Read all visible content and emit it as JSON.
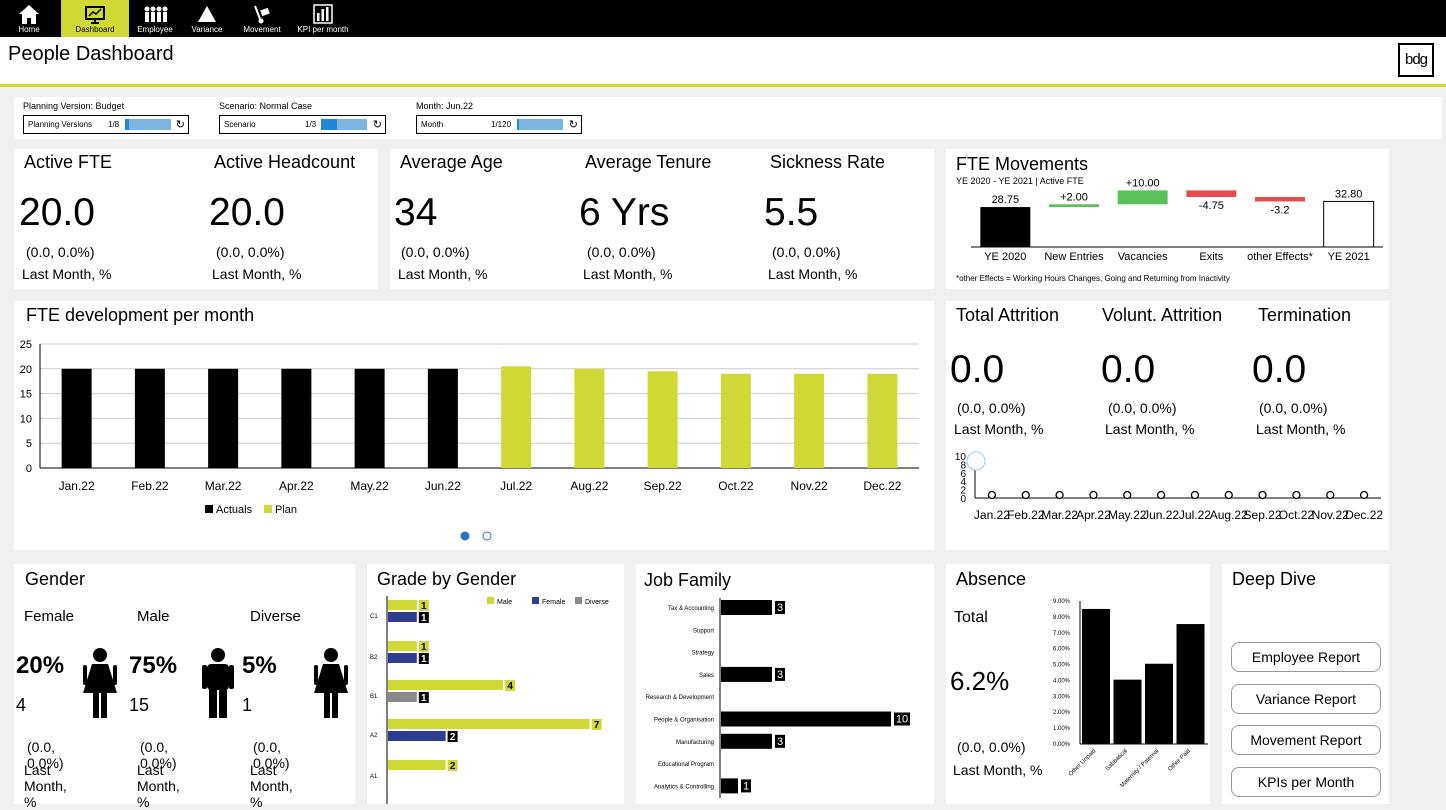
{
  "nav": [
    {
      "label": "Home",
      "icon": "home-icon"
    },
    {
      "label": "Dashboard",
      "icon": "dashboard-icon"
    },
    {
      "label": "Employee",
      "icon": "people-icon"
    },
    {
      "label": "Variance",
      "icon": "triangle-icon"
    },
    {
      "label": "Movement",
      "icon": "dolly-icon"
    },
    {
      "label": "KPI per month",
      "icon": "bar-chart-icon"
    }
  ],
  "page_title": "People Dashboard",
  "logo_text": "bdg",
  "filters": [
    {
      "label": "Planning Version: Budget",
      "box": "Planning Versions",
      "count": "1/8"
    },
    {
      "label": "Scenario: Normal Case",
      "box": "Scenario",
      "count": "1/3"
    },
    {
      "label": "Month: Jun.22",
      "box": "Month",
      "count": "1/120"
    }
  ],
  "kpis": [
    {
      "title": "Active FTE",
      "value": "20.0",
      "delta": "(0.0, 0.0%)",
      "sub": "Last Month, %"
    },
    {
      "title": "Active Headcount",
      "value": "20.0",
      "delta": "(0.0, 0.0%)",
      "sub": "Last Month, %"
    },
    {
      "title": "Average Age",
      "value": "34",
      "delta": "(0.0, 0.0%)",
      "sub": "Last Month, %"
    },
    {
      "title": "Average Tenure",
      "value": "6 Yrs",
      "delta": "(0.0, 0.0%)",
      "sub": "Last Month, %"
    },
    {
      "title": "Sickness Rate",
      "value": "5.5",
      "delta": "(0.0, 0.0%)",
      "sub": "Last Month, %"
    }
  ],
  "fte_movements": {
    "title": "FTE Movements",
    "subtitle": "YE 2020 - YE 2021 | Active FTE",
    "footnote": "*other Effects = Working Hours Changes, Going and Returning from Inactivity",
    "colors": {
      "total": "#000000",
      "up": "#5cc05c",
      "down": "#e84c4c"
    }
  },
  "attrition": [
    {
      "title": "Total Attrition",
      "value": "0.0",
      "delta": "(0.0, 0.0%)",
      "sub": "Last Month, %"
    },
    {
      "title": "Volunt. Attrition",
      "value": "0.0",
      "delta": "(0.0, 0.0%)",
      "sub": "Last Month, %"
    },
    {
      "title": "Termination",
      "value": "0.0",
      "delta": "(0.0, 0.0%)",
      "sub": "Last Month, %"
    }
  ],
  "fte_dev": {
    "title": "FTE development per month",
    "legend": [
      "Actuals",
      "Plan"
    ],
    "colors": {
      "actuals": "#000000",
      "plan": "#cfd935"
    }
  },
  "gender": {
    "title": "Gender",
    "items": [
      {
        "label": "Female",
        "pct": "20%",
        "count": "4",
        "delta": "(0.0, 0.0%)",
        "sub": "Last Month, %",
        "icon": "female-icon"
      },
      {
        "label": "Male",
        "pct": "75%",
        "count": "15",
        "delta": "(0.0, 0.0%)",
        "sub": "Last Month, %",
        "icon": "male-icon"
      },
      {
        "label": "Diverse",
        "pct": "5%",
        "count": "1",
        "delta": "(0.0, 0.0%)",
        "sub": "Last Month, %",
        "icon": "female-icon"
      }
    ]
  },
  "grade_title": "Grade by Gender",
  "job_title": "Job Family",
  "absence": {
    "title": "Absence",
    "total_label": "Total",
    "total_value": "6.2%",
    "delta": "(0.0, 0.0%)",
    "sub": "Last Month, %"
  },
  "deep_dive": {
    "title": "Deep Dive",
    "buttons": [
      "Employee Report",
      "Variance Report",
      "Movement Report",
      "KPIs per Month"
    ]
  },
  "pager": {
    "pages": 2,
    "current": 1
  },
  "chart_data": [
    {
      "type": "bar",
      "title": "FTE development per month",
      "categories": [
        "Jan.22",
        "Feb.22",
        "Mar.22",
        "Apr.22",
        "May.22",
        "Jun.22",
        "Jul.22",
        "Aug.22",
        "Sep.22",
        "Oct.22",
        "Nov.22",
        "Dec.22"
      ],
      "series": [
        {
          "name": "Actuals",
          "values": [
            20,
            20,
            20,
            20,
            20,
            20,
            null,
            null,
            null,
            null,
            null,
            null
          ]
        },
        {
          "name": "Plan",
          "values": [
            null,
            null,
            null,
            null,
            null,
            null,
            20.5,
            20,
            19.5,
            19,
            19,
            19
          ]
        }
      ],
      "ylim": [
        0,
        25
      ],
      "yticks": [
        0,
        5,
        10,
        15,
        20,
        25
      ],
      "grid": true,
      "legend": "bottom"
    },
    {
      "type": "bar",
      "title": "FTE Movements",
      "categories": [
        "YE 2020",
        "New Entries",
        "Vacancies",
        "Exits",
        "other Effects*",
        "YE 2021"
      ],
      "values": [
        28.75,
        2.0,
        10.0,
        -4.75,
        -3.2,
        32.8
      ],
      "labels": [
        "28.75",
        "+2.00",
        "+10.00",
        "-4.75",
        "-3.2",
        "32.80"
      ]
    },
    {
      "type": "line",
      "categories": [
        "Jan.22",
        "Feb.22",
        "Mar.22",
        "Apr.22",
        "May.22",
        "Jun.22",
        "Jul.22",
        "Aug.22",
        "Sep.22",
        "Oct.22",
        "Nov.22",
        "Dec.22"
      ],
      "values": [
        0,
        0,
        0,
        0,
        0,
        0,
        0,
        0,
        0,
        0,
        0,
        0
      ],
      "yticks": [
        "0",
        "2",
        "4",
        "6",
        "8",
        "10"
      ]
    },
    {
      "type": "bar",
      "title": "Grade by Gender",
      "categories": [
        "C1",
        "B2",
        "B1",
        "A2",
        "A1"
      ],
      "series": [
        {
          "name": "Male",
          "values": [
            1,
            1,
            4,
            7,
            2
          ]
        },
        {
          "name": "Female",
          "values": [
            1,
            1,
            0,
            2,
            0
          ]
        },
        {
          "name": "Diverse",
          "values": [
            0,
            0,
            1,
            0,
            0
          ]
        }
      ],
      "legend": "top-right",
      "colors": {
        "Male": "#cfd935",
        "Female": "#2e3d8f",
        "Diverse": "#8a8a8a"
      }
    },
    {
      "type": "bar",
      "title": "Job Family",
      "categories": [
        "Tax & Accounting",
        "Support",
        "Strategy",
        "Sales",
        "Research & Development",
        "People & Organisation",
        "Manufacturing",
        "Educational Program",
        "Analytics & Controlling"
      ],
      "values": [
        3,
        0,
        0,
        3,
        0,
        10,
        3,
        0,
        1
      ]
    },
    {
      "type": "bar",
      "title": "Absence",
      "categories": [
        "Other Unpaid",
        "Sabbatical",
        "Maternity / Paternal",
        "Other Paid"
      ],
      "values": [
        8.5,
        4.05,
        5.05,
        7.55
      ],
      "yticks": [
        "0.00%",
        "1.00%",
        "2.00%",
        "3.00%",
        "4.00%",
        "5.00%",
        "6.00%",
        "7.00%",
        "8.00%",
        "9.00%"
      ],
      "ylim": [
        0,
        9
      ]
    }
  ]
}
